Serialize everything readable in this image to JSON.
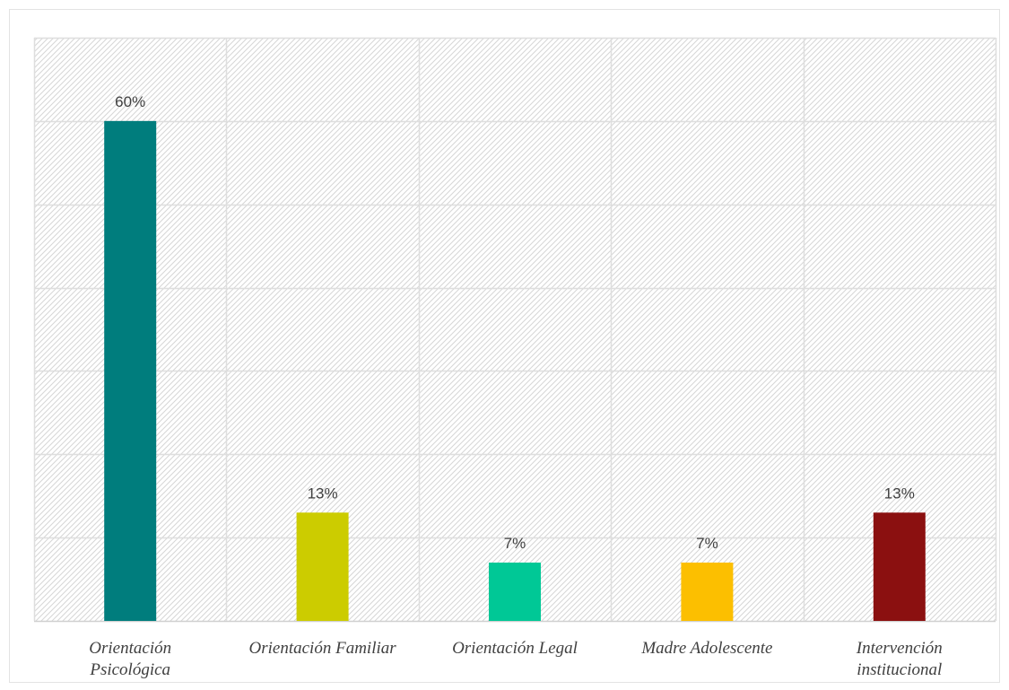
{
  "chart_data": {
    "type": "bar",
    "categories": [
      [
        "Orientación",
        "Psicológica"
      ],
      [
        "Orientación Familiar"
      ],
      [
        "Orientación Legal"
      ],
      [
        "Madre Adolescente"
      ],
      [
        "Intervención",
        "institucional"
      ]
    ],
    "values": [
      60,
      13,
      7,
      7,
      13
    ],
    "data_labels": [
      "60%",
      "13%",
      "7%",
      "7%",
      "13%"
    ],
    "colors": [
      "#007d7d",
      "#cccc00",
      "#00c896",
      "#fcbf00",
      "#8b1010"
    ],
    "ylim": [
      0,
      70
    ],
    "y_gridline_step": 10,
    "grid": true,
    "legend": "none",
    "title": "",
    "xlabel": "",
    "ylabel": ""
  }
}
